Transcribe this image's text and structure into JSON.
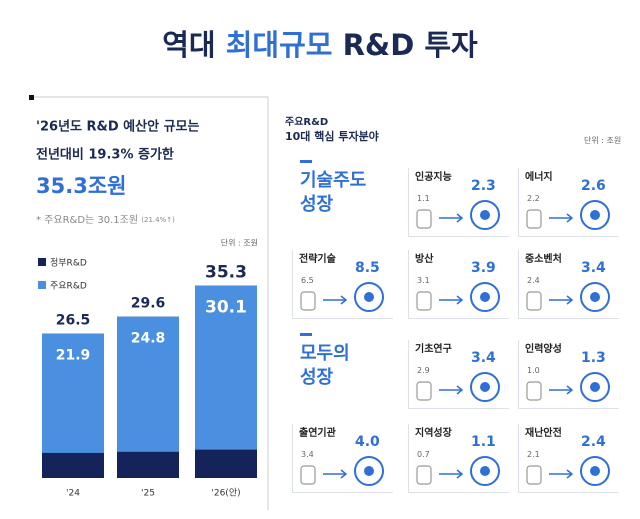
{
  "title": {
    "parts": [
      "역대",
      "최대규모",
      "R&D 투자"
    ]
  },
  "summary": {
    "line1": "'26년도 R&D 예산안 규모는",
    "line2": "전년대비 19.3% 증가한",
    "headline": "35.3조원",
    "note": "* 주요R&D는 30.1조원",
    "note_sub": "(21.4%↑)"
  },
  "chart_data": {
    "type": "bar",
    "unit": "단위 : 조원",
    "categories": [
      "'24",
      "'25",
      "'26(안)"
    ],
    "series": [
      {
        "name": "정부R&D",
        "color": "#14245a",
        "values": [
          26.5,
          29.6,
          35.3
        ]
      },
      {
        "name": "주요R&D",
        "color": "#4a8fe0",
        "values": [
          21.9,
          24.8,
          30.1
        ]
      }
    ],
    "ylim": [
      0,
      40
    ]
  },
  "fields": {
    "kicker": "주요R&D",
    "title": "10대 핵심 투자분야",
    "unit": "단위 : 조원",
    "groups": [
      {
        "lines": [
          "기술주도",
          "성장"
        ]
      },
      {
        "lines": [
          "모두의",
          "성장"
        ]
      }
    ],
    "items": [
      {
        "label": "인공지능",
        "from": "1.1",
        "to": "2.3"
      },
      {
        "label": "에너지",
        "from": "2.2",
        "to": "2.6"
      },
      {
        "label": "전략기술",
        "from": "6.5",
        "to": "8.5"
      },
      {
        "label": "방산",
        "from": "3.1",
        "to": "3.9"
      },
      {
        "label": "중소벤처",
        "from": "2.4",
        "to": "3.4"
      },
      {
        "label": "기초연구",
        "from": "2.9",
        "to": "3.4"
      },
      {
        "label": "인력양성",
        "from": "1.0",
        "to": "1.3"
      },
      {
        "label": "출연기관",
        "from": "3.4",
        "to": "4.0"
      },
      {
        "label": "지역성장",
        "from": "0.7",
        "to": "1.1"
      },
      {
        "label": "재난안전",
        "from": "2.1",
        "to": "2.4"
      }
    ]
  }
}
